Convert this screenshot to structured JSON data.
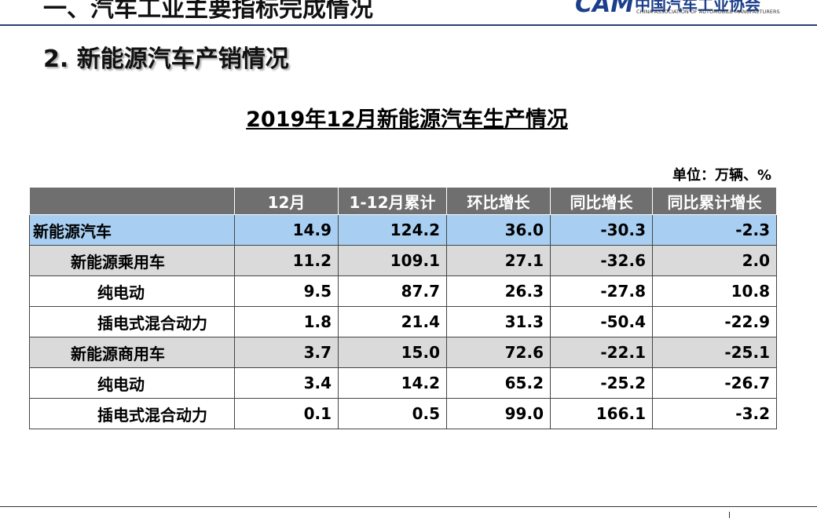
{
  "header": {
    "title": "一、汽车工业主要指标完成情况",
    "logo_name": "中国汽车工业协会",
    "logo_en": "CHINA ASSOCIATION OF AUTOMOBILE MANUFACTURERS"
  },
  "section_title": "2. 新能源汽车产销情况",
  "table": {
    "title": "2019年12月新能源汽车生产情况",
    "unit": "单位：万辆、%",
    "columns": [
      "12月",
      "1-12月累计",
      "环比增长",
      "同比增长",
      "同比累计增长"
    ],
    "rows": [
      {
        "label": "新能源汽车",
        "values": [
          "14.9",
          "124.2",
          "36.0",
          "-30.3",
          "-2.3"
        ]
      },
      {
        "label": "新能源乘用车",
        "values": [
          "11.2",
          "109.1",
          "27.1",
          "-32.6",
          "2.0"
        ]
      },
      {
        "label": "纯电动",
        "values": [
          "9.5",
          "87.7",
          "26.3",
          "-27.8",
          "10.8"
        ]
      },
      {
        "label": "插电式混合动力",
        "values": [
          "1.8",
          "21.4",
          "31.3",
          "-50.4",
          "-22.9"
        ]
      },
      {
        "label": "新能源商用车",
        "values": [
          "3.7",
          "15.0",
          "72.6",
          "-22.1",
          "-25.1"
        ]
      },
      {
        "label": "纯电动",
        "values": [
          "3.4",
          "14.2",
          "65.2",
          "-25.2",
          "-26.7"
        ]
      },
      {
        "label": "插电式混合动力",
        "values": [
          "0.1",
          "0.5",
          "99.0",
          "166.1",
          "-3.2"
        ]
      }
    ]
  }
}
